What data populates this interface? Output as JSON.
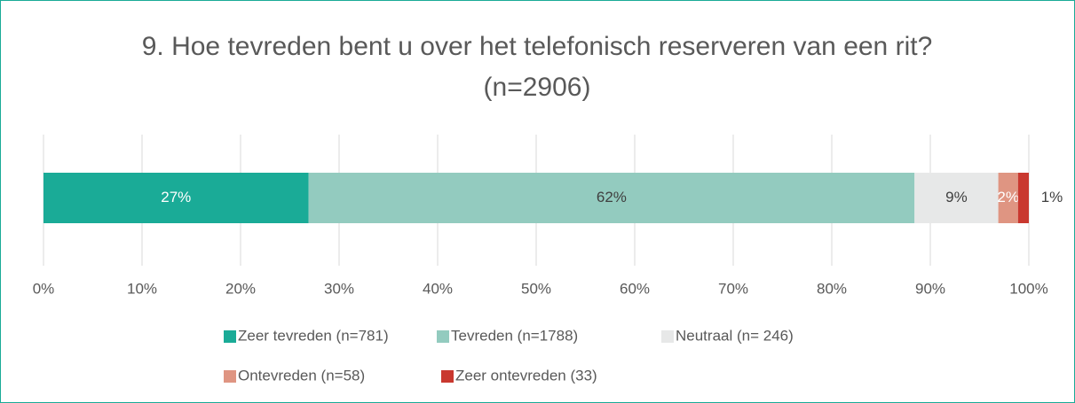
{
  "chart_data": {
    "type": "stacked_bar_horizontal",
    "title": "9. Hoe tevreden bent u over het telefonisch reserveren van een rit? (n=2906)",
    "series": [
      {
        "name": "Zeer tevreden (n=781)",
        "color": "#1aab97",
        "values": [
          26.9
        ],
        "value_labels": [
          "27%"
        ]
      },
      {
        "name": "Tevreden (n=1788)",
        "color": "#93cbbf",
        "values": [
          61.5
        ],
        "value_labels": [
          "62%"
        ]
      },
      {
        "name": "Neutraal (n= 246)",
        "color": "#e7e8e8",
        "values": [
          8.5
        ],
        "value_labels": [
          "9%"
        ]
      },
      {
        "name": "Ontevreden (n=58)",
        "color": "#df9582",
        "values": [
          2.0
        ],
        "value_labels": [
          "2%"
        ]
      },
      {
        "name": "Zeer ontevreden (33)",
        "color": "#c9382f",
        "values": [
          1.1
        ],
        "value_labels": [
          "1%"
        ]
      }
    ],
    "xlim": [
      0,
      100
    ],
    "xticks": [
      {
        "value": 0,
        "label": "0%"
      },
      {
        "value": 10,
        "label": "10%"
      },
      {
        "value": 20,
        "label": "20%"
      },
      {
        "value": 30,
        "label": "30%"
      },
      {
        "value": 40,
        "label": "40%"
      },
      {
        "value": 50,
        "label": "50%"
      },
      {
        "value": 60,
        "label": "60%"
      },
      {
        "value": 70,
        "label": "70%"
      },
      {
        "value": 80,
        "label": "80%"
      },
      {
        "value": 90,
        "label": "90%"
      },
      {
        "value": 100,
        "label": "100%"
      }
    ],
    "grid": true,
    "legend": "bottom"
  }
}
